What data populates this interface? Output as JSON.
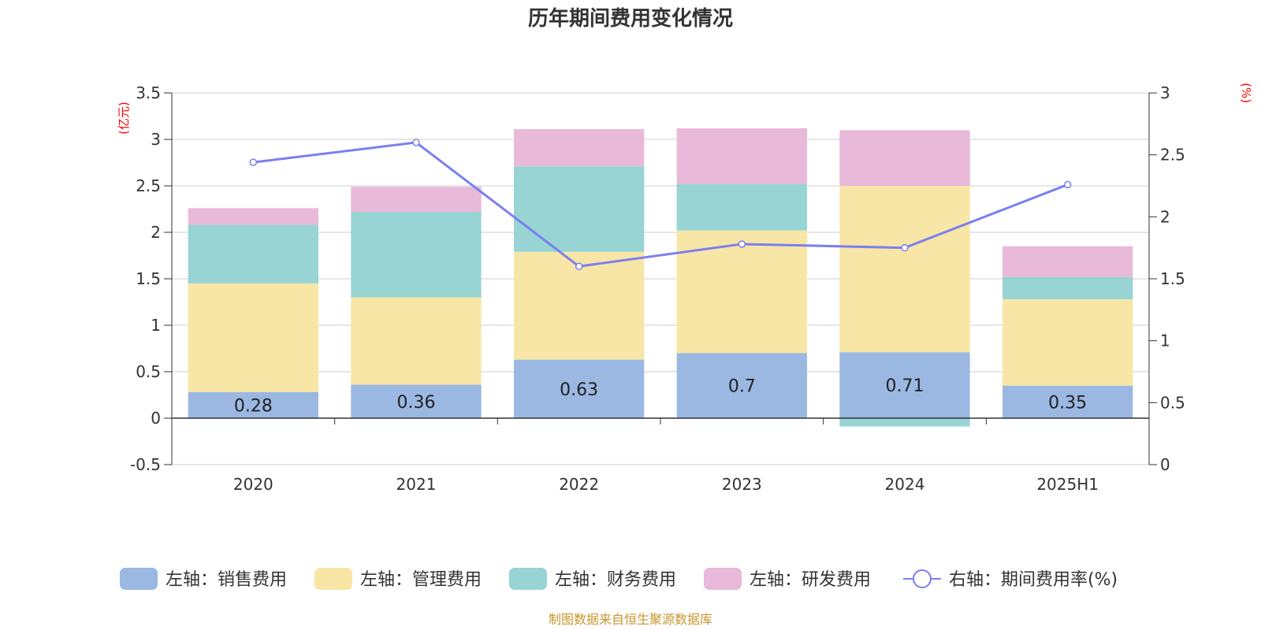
{
  "chart_data": {
    "type": "bar",
    "title": "历年期间费用变化情况",
    "left_axis_unit": "(亿元)",
    "right_axis_unit": "(%)",
    "categories": [
      "2020",
      "2021",
      "2022",
      "2023",
      "2024",
      "2025H1"
    ],
    "ylim_left": [
      -0.5,
      3.5
    ],
    "yticks_left": [
      "3.5",
      "3",
      "2.5",
      "2",
      "1.5",
      "1",
      "0.5",
      "0",
      "-0.5"
    ],
    "ylim_right": [
      0,
      3
    ],
    "yticks_right": [
      "3",
      "2.5",
      "2",
      "1.5",
      "1",
      "0.5",
      "0"
    ],
    "grid": true,
    "legend_position": "bottom",
    "series": [
      {
        "name": "左轴：销售费用",
        "axis": "left",
        "kind": "stacked-bar",
        "color": "#9bb8e2",
        "values": [
          0.28,
          0.36,
          0.63,
          0.7,
          0.71,
          0.35
        ]
      },
      {
        "name": "左轴：管理费用",
        "axis": "left",
        "kind": "stacked-bar",
        "color": "#f7e6a6",
        "values": [
          1.17,
          0.94,
          1.16,
          1.32,
          1.79,
          0.93
        ]
      },
      {
        "name": "左轴：财务费用",
        "axis": "left",
        "kind": "stacked-bar",
        "color": "#98d4d4",
        "values": [
          0.63,
          0.92,
          0.92,
          0.5,
          -0.09,
          0.24
        ]
      },
      {
        "name": "左轴：研发费用",
        "axis": "left",
        "kind": "stacked-bar",
        "color": "#e8b9d8",
        "values": [
          0.18,
          0.27,
          0.4,
          0.6,
          0.6,
          0.33
        ]
      },
      {
        "name": "右轴：期间费用率(%)",
        "axis": "right",
        "kind": "line",
        "color": "#7b7ff0",
        "values": [
          2.44,
          2.6,
          1.6,
          1.78,
          1.75,
          2.26
        ]
      }
    ],
    "bar_labels_series": "左轴：销售费用",
    "source": "制图数据来自恒生聚源数据库"
  }
}
